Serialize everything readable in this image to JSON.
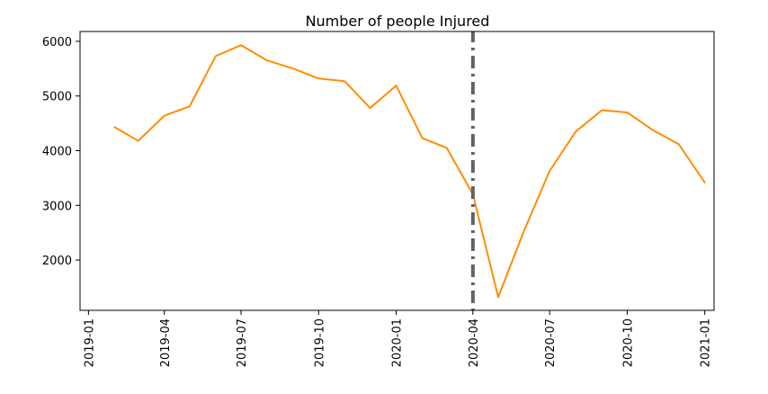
{
  "chart_data": {
    "type": "line",
    "title": "Number of people Injured",
    "xlabel": "",
    "ylabel": "",
    "x_axis_type": "date",
    "xlim": [
      "2018-12-22",
      "2021-01-12"
    ],
    "ylim": [
      1080,
      6180
    ],
    "x_ticks": [
      "2019-01",
      "2019-04",
      "2019-07",
      "2019-10",
      "2020-01",
      "2020-04",
      "2020-07",
      "2020-10",
      "2021-01"
    ],
    "y_ticks": [
      2000,
      3000,
      4000,
      5000,
      6000
    ],
    "grid": false,
    "legend": null,
    "series": [
      {
        "color": "#ff8c00",
        "x": [
          "2019-02",
          "2019-03",
          "2019-04",
          "2019-05",
          "2019-06",
          "2019-07",
          "2019-08",
          "2019-09",
          "2019-10",
          "2019-11",
          "2019-12",
          "2020-01",
          "2020-02",
          "2020-03",
          "2020-04",
          "2020-05",
          "2020-06",
          "2020-07",
          "2020-08",
          "2020-09",
          "2020-10",
          "2020-11",
          "2020-12",
          "2021-01"
        ],
        "values": [
          4430,
          4180,
          4640,
          4810,
          5730,
          5930,
          5650,
          5500,
          5320,
          5270,
          4780,
          5190,
          4230,
          4050,
          3200,
          1320,
          2550,
          3630,
          4350,
          4740,
          4700,
          4370,
          4120,
          3420
        ]
      }
    ],
    "vlines": [
      {
        "x": "2020-04-01",
        "color": "#636363",
        "style": "dashdot"
      }
    ]
  }
}
